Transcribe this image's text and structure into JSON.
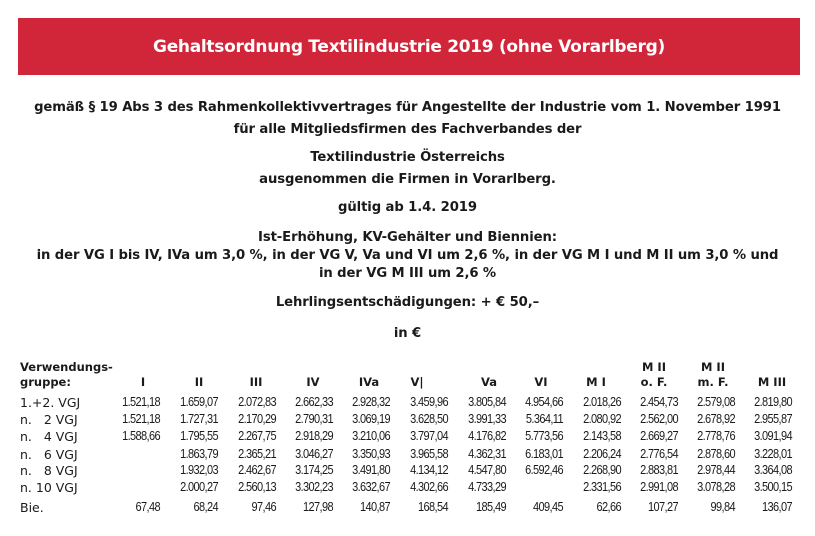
{
  "title": "Gehaltsordnung Textilindustrie 2019 (ohne Vorarlberg)",
  "intro": [
    "gemäß § 19 Abs 3 des Rahmenkollektivvertrages für Angestellte der Industrie vom 1. November 1991",
    "für alle Mitgliedsfirmen des Fachverbandes der",
    "Textilindustrie Österreichs",
    "ausgenommen die Firmen in Vorarlberg.",
    "gültig ab 1.4. 2019",
    "Ist-Erhöhung, KV-Gehälter und Biennien:",
    "in der VG I bis IV, IVa um 3,0 %, in der VG V, Va und VI um 2,6 %, in der VG M I und M II um 3,0 % und",
    "in der VG M III um 2,6 %",
    "Lehrlingsentschädigungen: + € 50,–",
    "in €"
  ],
  "table": {
    "row_header_label": [
      "Verwendungs-",
      "gruppe:"
    ],
    "columns": [
      [
        "",
        "I"
      ],
      [
        "",
        "II"
      ],
      [
        "",
        "III"
      ],
      [
        "",
        "IV"
      ],
      [
        "",
        "IVa"
      ],
      [
        "",
        "V|"
      ],
      [
        "",
        "Va"
      ],
      [
        "",
        "VI"
      ],
      [
        "",
        "M I"
      ],
      [
        "M II",
        "o. F."
      ],
      [
        "M II",
        "m. F."
      ],
      [
        "",
        "M III"
      ]
    ],
    "rows": [
      {
        "label": "1.+2. VGJ",
        "values": [
          "1.521,18",
          "1.659,07",
          "2.072,83",
          "2.662,33",
          "2.928,32",
          "3.459,96",
          "3.805,84",
          "4.954,66",
          "2.018,26",
          "2.454,73",
          "2.579,08",
          "2.819,80"
        ]
      },
      {
        "label": "n.   2 VGJ",
        "values": [
          "1.521,18",
          "1.727,31",
          "2.170,29",
          "2.790,31",
          "3.069,19",
          "3.628,50",
          "3.991,33",
          "5.364,11",
          "2.080,92",
          "2.562,00",
          "2.678,92",
          "2.955,87"
        ]
      },
      {
        "label": "n.   4 VGJ",
        "values": [
          "1.588,66",
          "1.795,55",
          "2.267,75",
          "2.918,29",
          "3.210,06",
          "3.797,04",
          "4.176,82",
          "5.773,56",
          "2.143,58",
          "2.669,27",
          "2.778,76",
          "3.091,94"
        ]
      },
      {
        "label": "n.   6 VGJ",
        "values": [
          "",
          "1.863,79",
          "2.365,21",
          "3.046,27",
          "3.350,93",
          "3.965,58",
          "4.362,31",
          "6.183,01",
          "2.206,24",
          "2.776,54",
          "2.878,60",
          "3.228,01"
        ]
      },
      {
        "label": "n.   8 VGJ",
        "values": [
          "",
          "1.932,03",
          "2.462,67",
          "3.174,25",
          "3.491,80",
          "4.134,12",
          "4.547,80",
          "6.592,46",
          "2.268,90",
          "2.883,81",
          "2.978,44",
          "3.364,08"
        ]
      },
      {
        "label": "n. 10 VGJ",
        "values": [
          "",
          "2.000,27",
          "2.560,13",
          "3.302,23",
          "3.632,67",
          "4.302,66",
          "4.733,29",
          "",
          "2.331,56",
          "2.991,08",
          "3.078,28",
          "3.500,15"
        ]
      },
      {
        "label": "Bie.",
        "values": [
          "67,48",
          "68,24",
          "97,46",
          "127,98",
          "140,87",
          "168,54",
          "185,49",
          "409,45",
          "62,66",
          "107,27",
          "99,84",
          "136,07"
        ]
      }
    ]
  }
}
